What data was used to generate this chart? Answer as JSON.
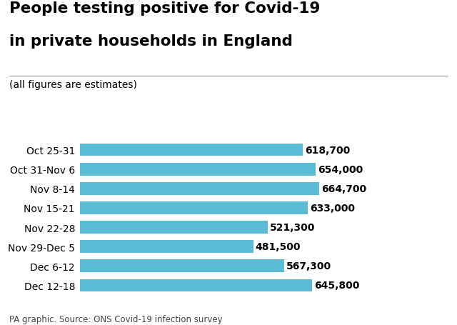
{
  "title_line1": "People testing positive for Covid-19",
  "title_line2": "in private households in England",
  "subtitle": "(all figures are estimates)",
  "footer": "PA graphic. Source: ONS Covid-19 infection survey",
  "categories": [
    "Oct 25-31",
    "Oct 31-Nov 6",
    "Nov 8-14",
    "Nov 15-21",
    "Nov 22-28",
    "Nov 29-Dec 5",
    "Dec 6-12",
    "Dec 12-18"
  ],
  "values": [
    618700,
    654000,
    664700,
    633000,
    521300,
    481500,
    567300,
    645800
  ],
  "labels": [
    "618,700",
    "654,000",
    "664,700",
    "633,000",
    "521,300",
    "481,500",
    "567,300",
    "645,800"
  ],
  "bar_color": "#5bbcd6",
  "background_color": "#ffffff",
  "text_color": "#000000",
  "title_fontsize": 15.5,
  "subtitle_fontsize": 10,
  "cat_fontsize": 10,
  "val_fontsize": 10,
  "footer_fontsize": 8.5,
  "xlim": [
    0,
    800000
  ]
}
